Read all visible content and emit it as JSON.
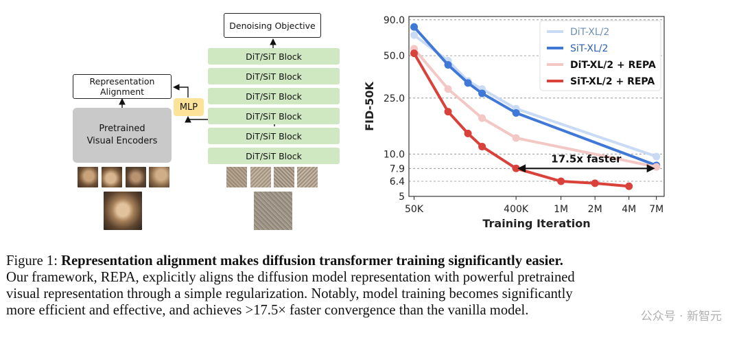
{
  "diagram": {
    "objective_label": "Denoising Objective",
    "block_label": "DiT/SiT Block",
    "blocks": [
      "DiT/SiT Block",
      "DiT/SiT Block",
      "DiT/SiT Block",
      "DiT/SiT Block",
      "DiT/SiT Block",
      "DiT/SiT Block"
    ],
    "alignment_line1": "Representation",
    "alignment_line2": "Alignment",
    "mlp_label": "MLP",
    "encoder_line1": "Pretrained",
    "encoder_line2": "Visual Encoders"
  },
  "chart_data": {
    "type": "line",
    "xlabel": "Training Iteration",
    "ylabel": "FID-50K",
    "xscale": "log",
    "yscale": "log",
    "xlim": [
      45000,
      8200000
    ],
    "ylim": [
      5,
      95
    ],
    "xticks": [
      50000,
      400000,
      1000000,
      2000000,
      4000000,
      7000000
    ],
    "xticklabels": [
      "50K",
      "400K",
      "1M",
      "2M",
      "4M",
      "7M"
    ],
    "yticks": [
      90.0,
      50.0,
      25.0,
      10.0,
      7.9,
      6.4,
      5
    ],
    "yticklabels": [
      "90.0",
      "50.0",
      "25.0",
      "10.0",
      "7.9",
      "6.4",
      "5"
    ],
    "grid": "horizontal-dashed",
    "legend_position": "top-right",
    "series": [
      {
        "name": "DiT-XL/2",
        "color": "#c9dbf4",
        "x": [
          50000,
          100000,
          150000,
          200000,
          400000,
          7000000
        ],
        "y": [
          70,
          46,
          33,
          29,
          21,
          9.6
        ]
      },
      {
        "name": "SiT-XL/2",
        "color": "#3f78d6",
        "x": [
          50000,
          100000,
          150000,
          200000,
          400000,
          7000000
        ],
        "y": [
          80,
          43,
          32,
          27,
          19.6,
          8.3
        ]
      },
      {
        "name": "DiT-XL/2 + REPA",
        "color": "#f3c7c4",
        "x": [
          50000,
          100000,
          200000,
          400000,
          7000000
        ],
        "y": [
          56,
          29,
          18,
          13,
          8.1
        ]
      },
      {
        "name": "SiT-XL/2 + REPA",
        "color": "#d9413b",
        "x": [
          50000,
          100000,
          150000,
          200000,
          400000,
          1000000,
          2000000,
          4000000
        ],
        "y": [
          52,
          20,
          14,
          11.3,
          7.9,
          6.4,
          6.2,
          5.9
        ]
      }
    ],
    "annotation": {
      "text": "17.5x faster",
      "from_x": 400000,
      "to_x": 7000000,
      "y": 7.9
    }
  },
  "caption": {
    "prefix": "Figure 1: ",
    "bold": "Representation alignment makes diffusion transformer training significantly easier.",
    "line2": "Our framework, REPA, explicitly aligns the diffusion model representation with powerful pretrained",
    "line3": "visual representation through a simple regularization. Notably, model training becomes significantly",
    "line4": "more efficient and effective, and achieves >17.5× faster convergence than the vanilla model."
  },
  "watermark": "公众号 · 新智元",
  "colors": {
    "block_green": "#cfe8c2",
    "mlp_yellow": "#fde39a",
    "encoder_gray": "#c9c9c9"
  }
}
